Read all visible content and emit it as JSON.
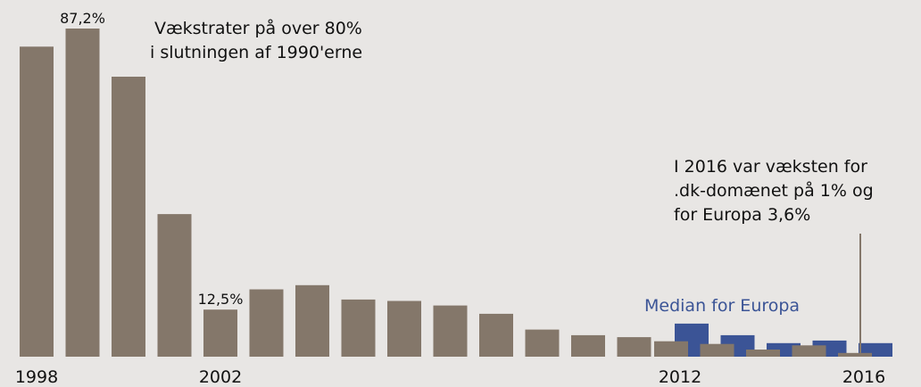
{
  "chart_data": {
    "type": "bar",
    "title": "",
    "xlabel": "",
    "ylabel": "",
    "ylim": [
      0,
      87.2
    ],
    "grid": false,
    "categories": [
      "1998",
      "1999",
      "2000",
      "2001",
      "2002",
      "2003",
      "2004",
      "2005",
      "2006",
      "2007",
      "2008",
      "2009",
      "2010",
      "2011",
      "2012",
      "2013",
      "2014",
      "2015",
      "2016"
    ],
    "x_tick_labels": [
      "1998",
      "2002",
      "2012",
      "2016"
    ],
    "series": [
      {
        "name": ".dk",
        "color": "#84776a",
        "values": [
          82.4,
          87.2,
          74.4,
          37.9,
          12.5,
          17.9,
          19.0,
          15.2,
          14.8,
          13.6,
          11.4,
          7.2,
          5.7,
          5.2,
          4.1,
          3.4,
          1.9,
          3.0,
          1.0
        ]
      },
      {
        "name": "Median for Europa",
        "color": "#3b5496",
        "values": [
          null,
          null,
          null,
          null,
          null,
          null,
          null,
          null,
          null,
          null,
          null,
          null,
          null,
          null,
          8.8,
          5.7,
          3.6,
          4.3,
          3.6
        ]
      }
    ],
    "data_labels": [
      {
        "text": "87,2%",
        "series": 0,
        "index": 1
      },
      {
        "text": "12,5%",
        "series": 0,
        "index": 4
      }
    ],
    "annotations": [
      {
        "lines": [
          "Vækstrater på over 80%",
          " i slutningen af 1990'erne"
        ]
      },
      {
        "lines": [
          "I 2016 var væksten for",
          ".dk-domænet på 1% og",
          "for Europa 3,6%"
        ]
      }
    ],
    "legend_label": "Median for Europa"
  }
}
